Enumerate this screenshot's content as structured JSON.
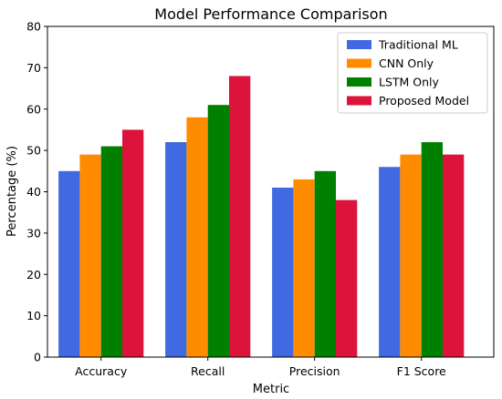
{
  "chart_data": {
    "type": "bar",
    "title": "Model Performance Comparison",
    "xlabel": "Metric",
    "ylabel": "Percentage (%)",
    "categories": [
      "Accuracy",
      "Recall",
      "Precision",
      "F1 Score"
    ],
    "ylim": [
      0,
      80
    ],
    "yticks": [
      0,
      10,
      20,
      30,
      40,
      50,
      60,
      70,
      80
    ],
    "grid": false,
    "legend_position": "top-right",
    "series": [
      {
        "name": "Traditional ML",
        "color": "#4169e1",
        "values": [
          45,
          52,
          41,
          46
        ]
      },
      {
        "name": "CNN Only",
        "color": "#ff8c00",
        "values": [
          49,
          58,
          43,
          49
        ]
      },
      {
        "name": "LSTM Only",
        "color": "#008000",
        "values": [
          51,
          61,
          45,
          52
        ]
      },
      {
        "name": "Proposed Model",
        "color": "#dc143c",
        "values": [
          55,
          68,
          38,
          49
        ]
      }
    ]
  }
}
